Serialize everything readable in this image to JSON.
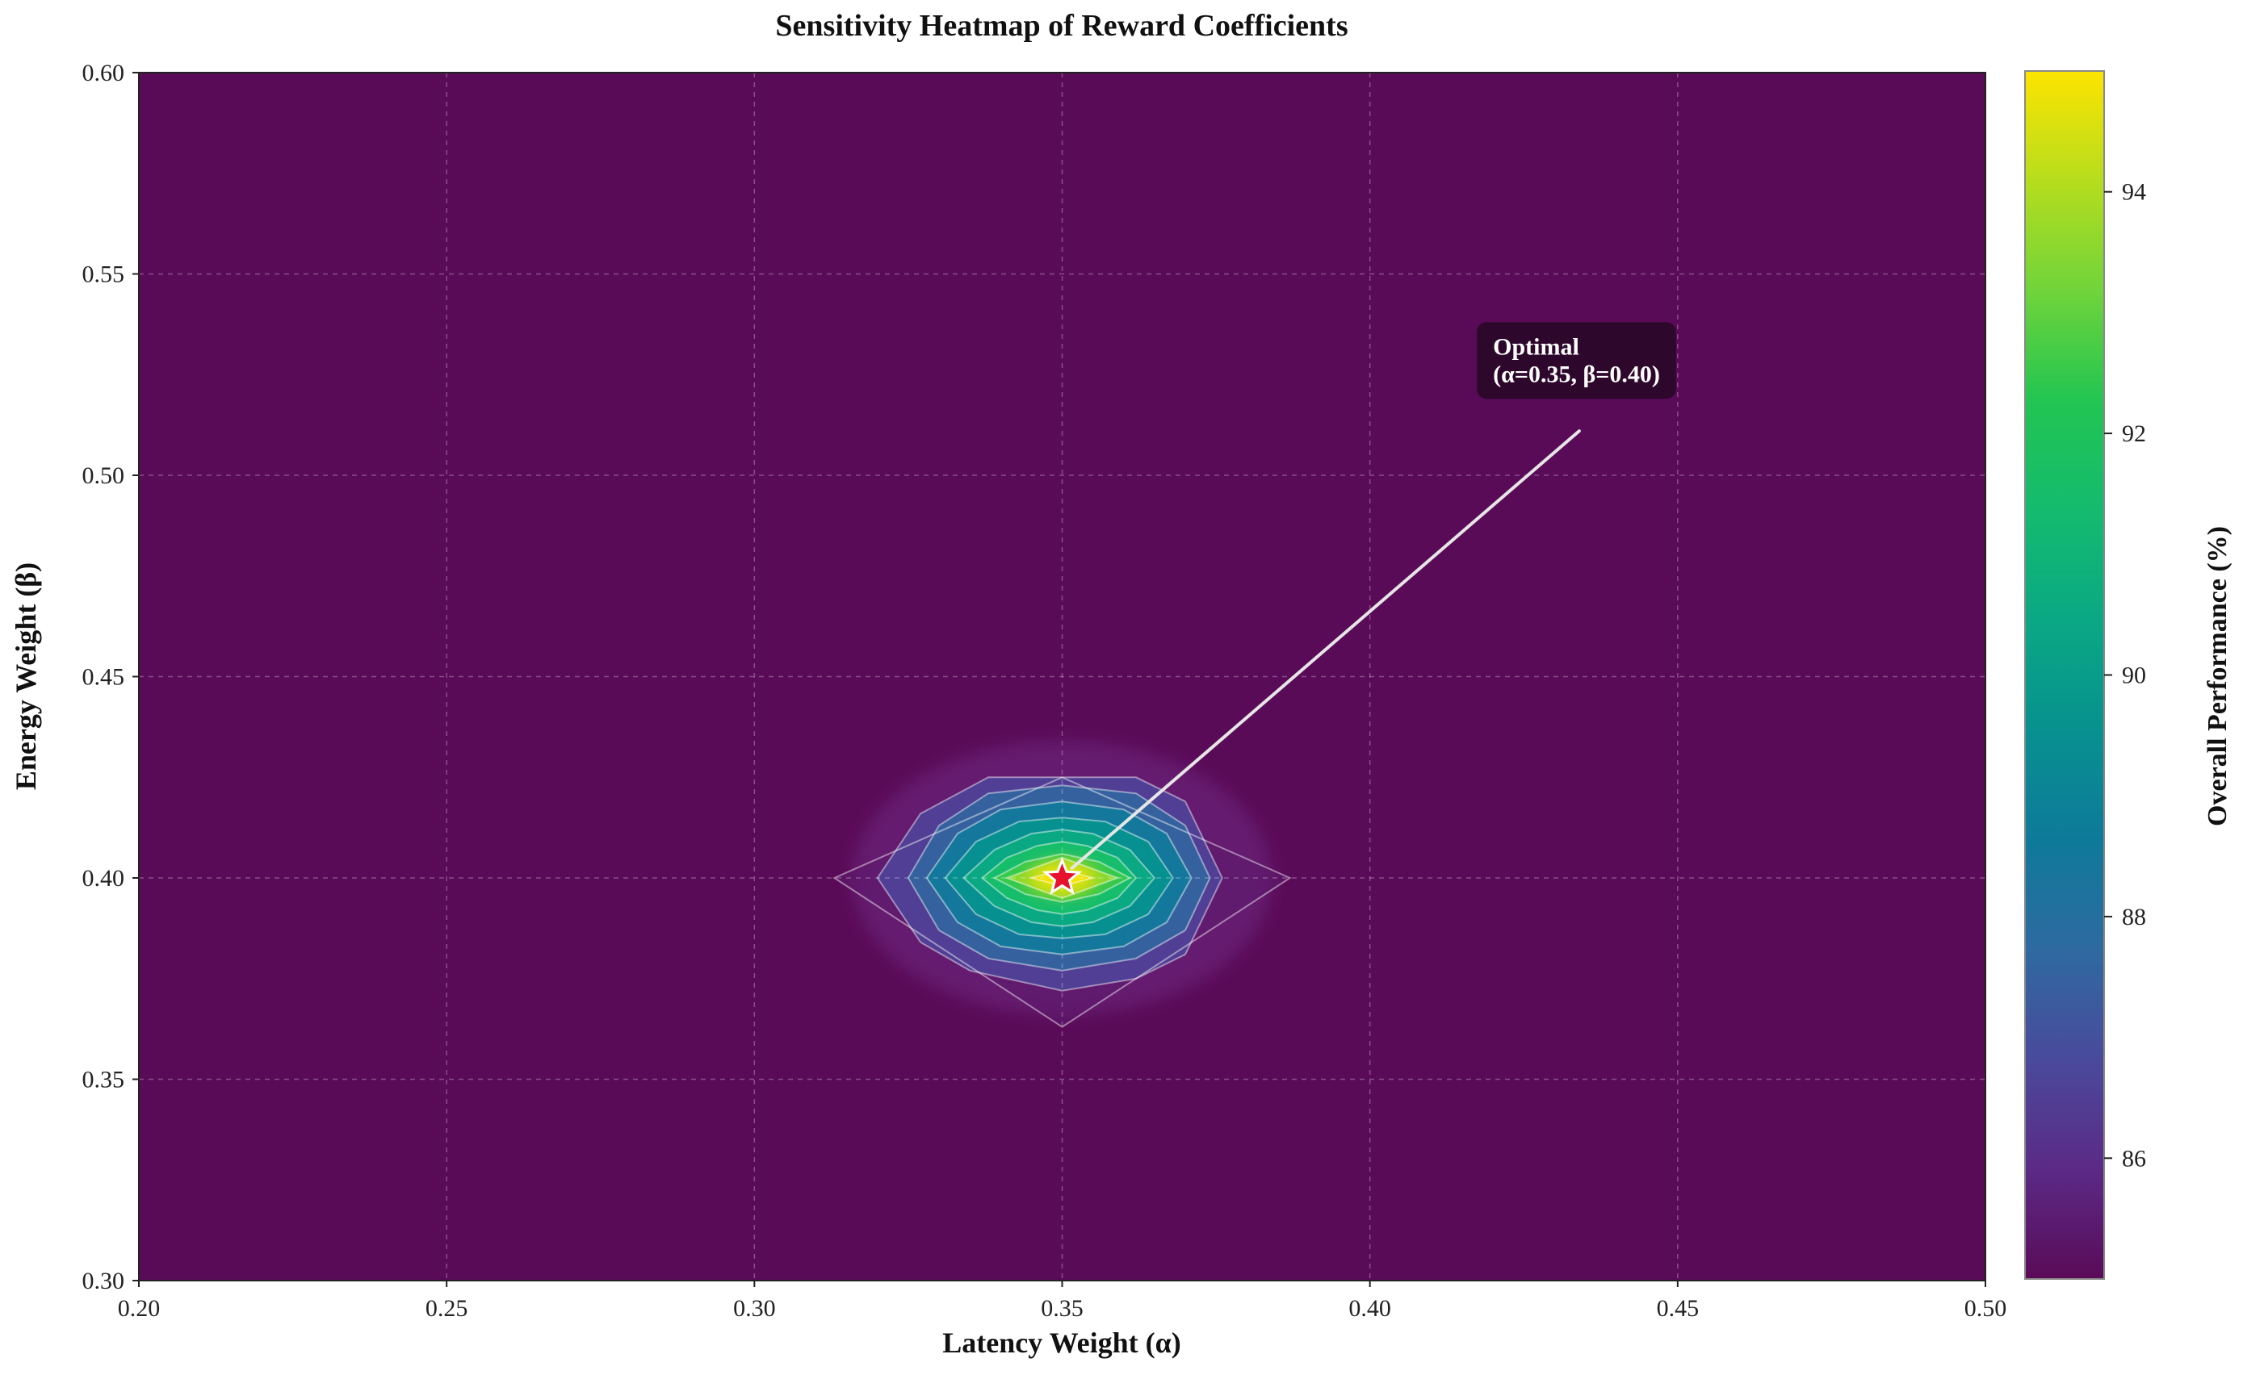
{
  "chart_data": {
    "type": "heatmap",
    "title": "Sensitivity Heatmap of Reward Coefficients",
    "xlabel": "Latency Weight (α)",
    "ylabel": "Energy Weight (β)",
    "xlim": [
      0.2,
      0.5
    ],
    "ylim": [
      0.3,
      0.6
    ],
    "xticks": [
      0.2,
      0.25,
      0.3,
      0.35,
      0.4,
      0.45,
      0.5
    ],
    "xtick_labels": [
      "0.20",
      "0.25",
      "0.30",
      "0.35",
      "0.40",
      "0.45",
      "0.50"
    ],
    "yticks": [
      0.3,
      0.35,
      0.4,
      0.45,
      0.5,
      0.55,
      0.6
    ],
    "ytick_labels": [
      "0.30",
      "0.35",
      "0.40",
      "0.45",
      "0.50",
      "0.55",
      "0.60"
    ],
    "grid": true,
    "colormap": "viridis",
    "background_color": "#5a0b58",
    "colorbar": {
      "label": "Overall Performance (%)",
      "range": [
        85.0,
        95.0
      ],
      "ticks": [
        86,
        88,
        90,
        92,
        94
      ],
      "tick_labels": [
        "86",
        "88",
        "90",
        "92",
        "94"
      ],
      "stops": [
        "#5a0b58",
        "#5b2a86",
        "#4a4a9c",
        "#2e6aa0",
        "#0e7a9a",
        "#07918f",
        "#0aa884",
        "#14bb6e",
        "#22c552",
        "#70d43a",
        "#b6dd1d",
        "#fde400"
      ]
    },
    "peak": {
      "x": 0.35,
      "y": 0.4,
      "value": 95.0
    },
    "contour_levels": [
      {
        "level": 85.5,
        "points": [
          [
            0.313,
            0.4
          ],
          [
            0.35,
            0.363
          ],
          [
            0.387,
            0.4
          ],
          [
            0.35,
            0.425
          ]
        ]
      },
      {
        "level": 86.5,
        "points": [
          [
            0.32,
            0.4
          ],
          [
            0.327,
            0.384
          ],
          [
            0.335,
            0.377
          ],
          [
            0.35,
            0.372
          ],
          [
            0.362,
            0.375
          ],
          [
            0.37,
            0.381
          ],
          [
            0.376,
            0.4
          ],
          [
            0.37,
            0.419
          ],
          [
            0.362,
            0.425
          ],
          [
            0.338,
            0.425
          ],
          [
            0.327,
            0.416
          ]
        ]
      },
      {
        "level": 87.5,
        "points": [
          [
            0.325,
            0.4
          ],
          [
            0.33,
            0.387
          ],
          [
            0.338,
            0.38
          ],
          [
            0.35,
            0.377
          ],
          [
            0.362,
            0.38
          ],
          [
            0.37,
            0.387
          ],
          [
            0.374,
            0.4
          ],
          [
            0.37,
            0.413
          ],
          [
            0.362,
            0.421
          ],
          [
            0.35,
            0.423
          ],
          [
            0.338,
            0.421
          ],
          [
            0.33,
            0.413
          ]
        ]
      },
      {
        "level": 88.5,
        "points": [
          [
            0.328,
            0.4
          ],
          [
            0.333,
            0.389
          ],
          [
            0.34,
            0.383
          ],
          [
            0.35,
            0.381
          ],
          [
            0.36,
            0.383
          ],
          [
            0.367,
            0.389
          ],
          [
            0.371,
            0.4
          ],
          [
            0.367,
            0.411
          ],
          [
            0.36,
            0.417
          ],
          [
            0.35,
            0.419
          ],
          [
            0.34,
            0.417
          ],
          [
            0.333,
            0.411
          ]
        ]
      },
      {
        "level": 89.5,
        "points": [
          [
            0.331,
            0.4
          ],
          [
            0.336,
            0.391
          ],
          [
            0.343,
            0.386
          ],
          [
            0.35,
            0.385
          ],
          [
            0.357,
            0.386
          ],
          [
            0.364,
            0.391
          ],
          [
            0.368,
            0.4
          ],
          [
            0.364,
            0.409
          ],
          [
            0.357,
            0.414
          ],
          [
            0.35,
            0.415
          ],
          [
            0.343,
            0.414
          ],
          [
            0.336,
            0.409
          ]
        ]
      },
      {
        "level": 90.5,
        "points": [
          [
            0.334,
            0.4
          ],
          [
            0.339,
            0.393
          ],
          [
            0.345,
            0.389
          ],
          [
            0.35,
            0.388
          ],
          [
            0.355,
            0.389
          ],
          [
            0.361,
            0.393
          ],
          [
            0.365,
            0.4
          ],
          [
            0.361,
            0.407
          ],
          [
            0.355,
            0.411
          ],
          [
            0.35,
            0.412
          ],
          [
            0.345,
            0.411
          ],
          [
            0.339,
            0.407
          ]
        ]
      },
      {
        "level": 91.5,
        "points": [
          [
            0.337,
            0.4
          ],
          [
            0.341,
            0.395
          ],
          [
            0.346,
            0.392
          ],
          [
            0.35,
            0.391
          ],
          [
            0.354,
            0.392
          ],
          [
            0.359,
            0.395
          ],
          [
            0.362,
            0.4
          ],
          [
            0.359,
            0.405
          ],
          [
            0.354,
            0.408
          ],
          [
            0.35,
            0.409
          ],
          [
            0.346,
            0.408
          ],
          [
            0.341,
            0.405
          ]
        ]
      },
      {
        "level": 92.5,
        "points": [
          [
            0.339,
            0.4
          ],
          [
            0.344,
            0.396
          ],
          [
            0.35,
            0.394
          ],
          [
            0.356,
            0.396
          ],
          [
            0.361,
            0.4
          ],
          [
            0.356,
            0.404
          ],
          [
            0.35,
            0.406
          ],
          [
            0.344,
            0.404
          ]
        ]
      },
      {
        "level": 93.5,
        "points": [
          [
            0.341,
            0.4
          ],
          [
            0.35,
            0.395
          ],
          [
            0.359,
            0.4
          ],
          [
            0.35,
            0.405
          ]
        ]
      },
      {
        "level": 94.5,
        "points": [
          [
            0.345,
            0.4
          ],
          [
            0.35,
            0.398
          ],
          [
            0.355,
            0.4
          ],
          [
            0.35,
            0.402
          ]
        ]
      }
    ],
    "marker": {
      "shape": "star",
      "x": 0.35,
      "y": 0.4,
      "color": "#e8112d",
      "edge_color": "#ffffff"
    },
    "annotation": {
      "lines": [
        "Optimal",
        "(α=0.35, β=0.40)"
      ],
      "box_color": "#2a0828",
      "text_color": "#ffffff",
      "arrow_color": "#e6e6e6",
      "text_anchor": {
        "x": 0.42,
        "y": 0.526
      },
      "arrow_start": {
        "x": 0.434,
        "y": 0.511
      }
    }
  }
}
